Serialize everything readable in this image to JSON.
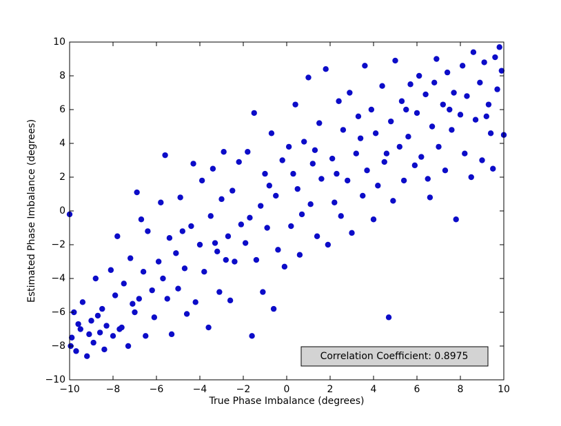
{
  "chart_data": {
    "type": "scatter",
    "x_label": "True Phase Imbalance (degrees)",
    "y_label": "Estimated Phase Imbalance (degrees)",
    "annotation": "Correlation Coefficient: 0.8975",
    "color": "#0c0cc8",
    "xlim": [
      -10,
      10
    ],
    "ylim": [
      -10,
      10
    ],
    "xticks": [
      {
        "value": -10,
        "label": "−10"
      },
      {
        "value": -8,
        "label": "−8"
      },
      {
        "value": -6,
        "label": "−6"
      },
      {
        "value": -4,
        "label": "−4"
      },
      {
        "value": -2,
        "label": "−2"
      },
      0,
      2,
      4,
      6,
      8,
      10
    ],
    "yticks": [
      {
        "value": -10,
        "label": "−10"
      },
      {
        "value": -8,
        "label": "−8"
      },
      {
        "value": -6,
        "label": "−6"
      },
      {
        "value": -4,
        "label": "−4"
      },
      {
        "value": -2,
        "label": "−2"
      },
      0,
      2,
      4,
      6,
      8,
      10
    ],
    "grid": false,
    "x": [
      -9.9,
      -9.8,
      -9.7,
      -9.5,
      -9.4,
      -9.2,
      -9.0,
      -8.9,
      -8.8,
      -8.6,
      -8.5,
      -8.4,
      -8.3,
      -8.1,
      -8.0,
      -9.6,
      -9.1,
      -8.7,
      -10.0,
      -9.95,
      -7.9,
      -7.8,
      -7.6,
      -7.5,
      -7.3,
      -7.2,
      -7.0,
      -6.9,
      -6.8,
      -6.6,
      -6.5,
      -6.4,
      -6.2,
      -6.1,
      -7.7,
      -7.1,
      -6.7,
      -5.9,
      -5.8,
      -5.6,
      -5.5,
      -5.4,
      -5.3,
      -5.1,
      -5.0,
      -4.9,
      -4.7,
      -4.6,
      -4.4,
      -4.3,
      -4.2,
      -4.0,
      -5.7,
      -4.8,
      -3.9,
      -3.8,
      -3.6,
      -3.5,
      -3.4,
      -3.2,
      -3.1,
      -3.0,
      -2.9,
      -2.7,
      -2.6,
      -2.5,
      -2.4,
      -2.2,
      -2.1,
      -3.3,
      -2.8,
      -1.9,
      -1.8,
      -1.6,
      -1.5,
      -1.4,
      -1.2,
      -1.1,
      -1.0,
      -0.9,
      -0.7,
      -0.6,
      -0.5,
      -0.4,
      -0.2,
      -0.1,
      -1.7,
      -0.8,
      0.1,
      0.2,
      0.4,
      0.5,
      0.6,
      0.8,
      1.0,
      1.1,
      1.2,
      1.4,
      1.5,
      1.6,
      1.8,
      1.9,
      0.3,
      1.3,
      0.7,
      2.1,
      2.2,
      2.4,
      2.5,
      2.6,
      2.8,
      2.9,
      3.0,
      3.2,
      3.3,
      3.5,
      3.6,
      3.7,
      3.9,
      4.0,
      2.3,
      3.4,
      4.1,
      4.2,
      4.4,
      4.5,
      4.7,
      4.8,
      4.9,
      5.0,
      5.2,
      5.3,
      5.4,
      5.6,
      5.7,
      5.9,
      6.0,
      4.6,
      5.5,
      6.1,
      6.2,
      6.4,
      6.5,
      6.6,
      6.7,
      6.9,
      7.0,
      7.2,
      7.3,
      7.4,
      7.6,
      7.7,
      7.8,
      8.0,
      6.8,
      7.5,
      8.1,
      8.2,
      8.3,
      8.5,
      8.6,
      8.7,
      8.9,
      9.0,
      9.1,
      9.3,
      9.4,
      9.5,
      9.6,
      9.7,
      9.8,
      9.9,
      10.0,
      9.2
    ],
    "y": [
      -7.5,
      -6.0,
      -8.3,
      -7.0,
      -5.4,
      -8.6,
      -6.5,
      -7.8,
      -4.0,
      -7.2,
      -5.8,
      -8.2,
      -6.8,
      -3.5,
      -7.4,
      -6.7,
      -7.3,
      -6.2,
      -0.2,
      -8.0,
      -5.0,
      -1.5,
      -6.9,
      -4.3,
      -8.0,
      -2.8,
      -6.0,
      1.1,
      -5.2,
      -3.6,
      -7.4,
      -1.2,
      -4.7,
      -6.3,
      -7.0,
      -5.5,
      -0.5,
      -3.0,
      0.5,
      3.3,
      -5.2,
      -1.6,
      -7.3,
      -2.5,
      -4.6,
      0.8,
      -3.4,
      -6.1,
      -0.9,
      2.8,
      -5.4,
      -2.0,
      -4.0,
      -1.2,
      1.8,
      -3.6,
      -6.9,
      -0.3,
      2.5,
      -2.4,
      -4.8,
      0.7,
      3.5,
      -1.5,
      -5.3,
      1.2,
      -3.0,
      2.9,
      -0.8,
      -1.9,
      -2.9,
      -1.9,
      3.5,
      -7.4,
      5.8,
      -2.9,
      0.3,
      -4.8,
      2.2,
      -1.0,
      4.6,
      -5.8,
      0.9,
      -2.3,
      3.0,
      -3.3,
      -0.4,
      1.5,
      3.8,
      -0.9,
      6.3,
      1.3,
      -2.6,
      4.1,
      7.9,
      0.4,
      2.8,
      -1.5,
      5.2,
      1.9,
      8.4,
      -2.0,
      2.2,
      3.6,
      -0.2,
      3.1,
      0.5,
      6.5,
      -0.3,
      4.8,
      1.8,
      7.0,
      -1.3,
      3.4,
      5.6,
      0.9,
      8.6,
      2.4,
      6.0,
      -0.5,
      2.2,
      4.3,
      4.6,
      1.5,
      7.4,
      2.9,
      -6.3,
      5.3,
      0.6,
      8.9,
      3.8,
      6.5,
      1.8,
      4.4,
      7.5,
      2.7,
      5.8,
      3.4,
      6.0,
      8.0,
      3.2,
      6.9,
      1.9,
      0.8,
      5.0,
      9.0,
      3.8,
      6.3,
      2.4,
      8.2,
      4.8,
      7.0,
      -0.5,
      5.7,
      7.6,
      6.0,
      8.6,
      3.4,
      6.8,
      2.0,
      9.4,
      5.4,
      7.6,
      3.0,
      8.8,
      6.3,
      4.6,
      2.5,
      9.1,
      7.2,
      9.7,
      8.3,
      4.5,
      5.6
    ]
  }
}
